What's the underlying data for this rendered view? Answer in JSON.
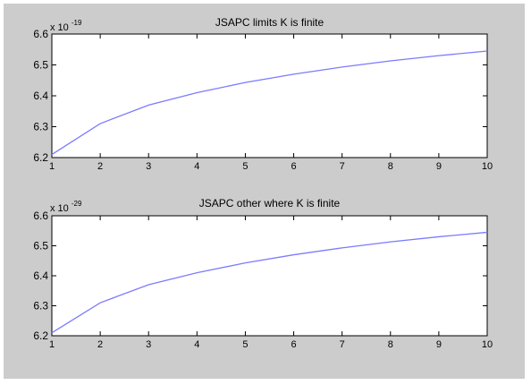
{
  "figure": {
    "background": "#cccccc",
    "axes_background": "#ffffff",
    "line_color": "#7b7bff"
  },
  "chart_data": [
    {
      "type": "line",
      "title": "JSAPC limits K is finite",
      "exponent_label": "x 10",
      "exponent": "-19",
      "xlabel": "",
      "ylabel": "",
      "xlim": [
        1,
        10
      ],
      "ylim": [
        6.2,
        6.6
      ],
      "xticks": [
        1,
        2,
        3,
        4,
        5,
        6,
        7,
        8,
        9,
        10
      ],
      "xtick_labels": [
        "1",
        "2",
        "3",
        "4",
        "5",
        "6",
        "7",
        "8",
        "9",
        "10"
      ],
      "yticks": [
        6.2,
        6.3,
        6.4,
        6.5,
        6.6
      ],
      "ytick_labels": [
        "6.2",
        "6.3",
        "6.4",
        "6.5",
        "6.6"
      ],
      "grid": false,
      "series": [
        {
          "x": [
            1,
            2,
            3,
            4,
            5,
            6,
            7,
            8,
            9,
            10
          ],
          "y": [
            6.21,
            6.31,
            6.37,
            6.41,
            6.443,
            6.47,
            6.493,
            6.513,
            6.53,
            6.545
          ]
        }
      ]
    },
    {
      "type": "line",
      "title": "JSAPC other where K is finite",
      "exponent_label": "x 10",
      "exponent": "-29",
      "xlabel": "",
      "ylabel": "",
      "xlim": [
        1,
        10
      ],
      "ylim": [
        6.2,
        6.6
      ],
      "xticks": [
        1,
        2,
        3,
        4,
        5,
        6,
        7,
        8,
        9,
        10
      ],
      "xtick_labels": [
        "1",
        "2",
        "3",
        "4",
        "5",
        "6",
        "7",
        "8",
        "9",
        "10"
      ],
      "yticks": [
        6.2,
        6.3,
        6.4,
        6.5,
        6.6
      ],
      "ytick_labels": [
        "6.2",
        "6.3",
        "6.4",
        "6.5",
        "6.6"
      ],
      "grid": false,
      "series": [
        {
          "x": [
            1,
            2,
            3,
            4,
            5,
            6,
            7,
            8,
            9,
            10
          ],
          "y": [
            6.21,
            6.31,
            6.37,
            6.41,
            6.443,
            6.47,
            6.493,
            6.513,
            6.53,
            6.545
          ]
        }
      ]
    }
  ]
}
